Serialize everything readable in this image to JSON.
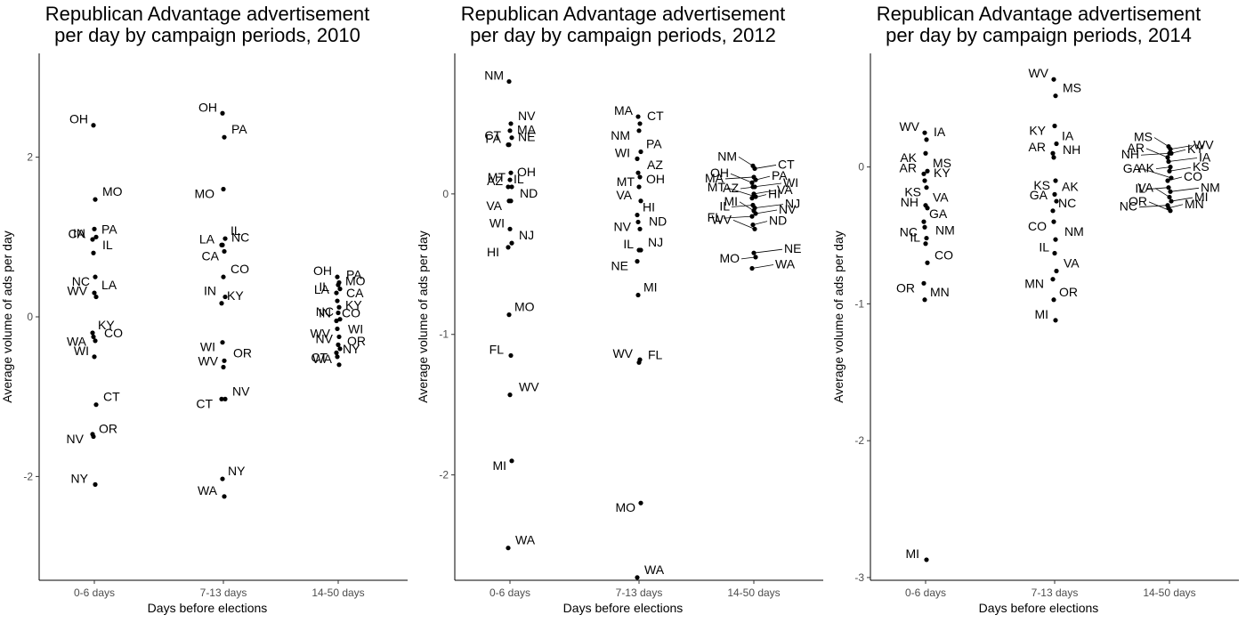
{
  "chart_data": [
    {
      "type": "scatter",
      "title": "Republican Advantage advertisement\nper day by campaign periods, 2010",
      "xlabel": "Days before elections",
      "ylabel": "Average volume of ads per day",
      "categories": [
        "0-6 days",
        "7-13 days",
        "14-50 days"
      ],
      "ylim": [
        -3.3,
        3.3
      ],
      "yticks": [
        -2,
        0,
        2
      ],
      "grid": false,
      "legend": "none",
      "points": [
        {
          "x": "0-6 days",
          "y": 2.4,
          "label": "OH"
        },
        {
          "x": "0-6 days",
          "y": 1.47,
          "label": "MO"
        },
        {
          "x": "0-6 days",
          "y": 1.1,
          "label": "CA"
        },
        {
          "x": "0-6 days",
          "y": 1.0,
          "label": "PA"
        },
        {
          "x": "0-6 days",
          "y": 0.97,
          "label": "IN"
        },
        {
          "x": "0-6 days",
          "y": 0.8,
          "label": "IL"
        },
        {
          "x": "0-6 days",
          "y": 0.5,
          "label": "NC"
        },
        {
          "x": "0-6 days",
          "y": 0.3,
          "label": "LA"
        },
        {
          "x": "0-6 days",
          "y": 0.25,
          "label": "WV"
        },
        {
          "x": "0-6 days",
          "y": -0.2,
          "label": "KY"
        },
        {
          "x": "0-6 days",
          "y": -0.25,
          "label": "WA"
        },
        {
          "x": "0-6 days",
          "y": -0.3,
          "label": "CO"
        },
        {
          "x": "0-6 days",
          "y": -0.5,
          "label": "WI"
        },
        {
          "x": "0-6 days",
          "y": -1.1,
          "label": "CT"
        },
        {
          "x": "0-6 days",
          "y": -1.47,
          "label": "NV"
        },
        {
          "x": "0-6 days",
          "y": -1.5,
          "label": "OR"
        },
        {
          "x": "0-6 days",
          "y": -2.1,
          "label": "NY"
        },
        {
          "x": "7-13 days",
          "y": 2.55,
          "label": "OH"
        },
        {
          "x": "7-13 days",
          "y": 2.25,
          "label": "PA"
        },
        {
          "x": "7-13 days",
          "y": 1.6,
          "label": "MO"
        },
        {
          "x": "7-13 days",
          "y": 0.98,
          "label": "IL"
        },
        {
          "x": "7-13 days",
          "y": 0.9,
          "label": "LA"
        },
        {
          "x": "7-13 days",
          "y": 0.9,
          "label": "NC"
        },
        {
          "x": "7-13 days",
          "y": 0.82,
          "label": "CA"
        },
        {
          "x": "7-13 days",
          "y": 0.5,
          "label": "CO"
        },
        {
          "x": "7-13 days",
          "y": 0.25,
          "label": "IN"
        },
        {
          "x": "7-13 days",
          "y": 0.17,
          "label": "KY"
        },
        {
          "x": "7-13 days",
          "y": -0.32,
          "label": "WI"
        },
        {
          "x": "7-13 days",
          "y": -0.55,
          "label": "OR"
        },
        {
          "x": "7-13 days",
          "y": -0.63,
          "label": "WV"
        },
        {
          "x": "7-13 days",
          "y": -1.03,
          "label": "NV"
        },
        {
          "x": "7-13 days",
          "y": -1.03,
          "label": "CT"
        },
        {
          "x": "7-13 days",
          "y": -2.03,
          "label": "NY"
        },
        {
          "x": "7-13 days",
          "y": -2.25,
          "label": "WA"
        },
        {
          "x": "14-50 days",
          "y": 0.5,
          "label": "OH"
        },
        {
          "x": "14-50 days",
          "y": 0.43,
          "label": "PA"
        },
        {
          "x": "14-50 days",
          "y": 0.4,
          "label": "LA"
        },
        {
          "x": "14-50 days",
          "y": 0.35,
          "label": "MO"
        },
        {
          "x": "14-50 days",
          "y": 0.3,
          "label": "IL"
        },
        {
          "x": "14-50 days",
          "y": 0.2,
          "label": "CA"
        },
        {
          "x": "14-50 days",
          "y": 0.12,
          "label": "NC"
        },
        {
          "x": "14-50 days",
          "y": 0.05,
          "label": "KY"
        },
        {
          "x": "14-50 days",
          "y": -0.03,
          "label": "IN"
        },
        {
          "x": "14-50 days",
          "y": -0.05,
          "label": "CO"
        },
        {
          "x": "14-50 days",
          "y": -0.15,
          "label": "WV"
        },
        {
          "x": "14-50 days",
          "y": -0.25,
          "label": "WI"
        },
        {
          "x": "14-50 days",
          "y": -0.35,
          "label": "NV"
        },
        {
          "x": "14-50 days",
          "y": -0.4,
          "label": "OR"
        },
        {
          "x": "14-50 days",
          "y": -0.45,
          "label": "CT"
        },
        {
          "x": "14-50 days",
          "y": -0.5,
          "label": "NY"
        },
        {
          "x": "14-50 days",
          "y": -0.6,
          "label": "WA"
        }
      ]
    },
    {
      "type": "scatter",
      "title": "Republican Advantage advertisement\nper day by campaign periods, 2012",
      "xlabel": "Days before elections",
      "ylabel": "Average volume of ads per day",
      "categories": [
        "0-6 days",
        "7-13 days",
        "14-50 days"
      ],
      "ylim": [
        -2.75,
        1.0
      ],
      "yticks": [
        -2,
        -1,
        0
      ],
      "grid": false,
      "legend": "none",
      "points": [
        {
          "x": "0-6 days",
          "y": 0.8,
          "label": "NM"
        },
        {
          "x": "0-6 days",
          "y": 0.5,
          "label": "NV"
        },
        {
          "x": "0-6 days",
          "y": 0.45,
          "label": "CT"
        },
        {
          "x": "0-6 days",
          "y": 0.4,
          "label": "MA"
        },
        {
          "x": "0-6 days",
          "y": 0.35,
          "label": "PA"
        },
        {
          "x": "0-6 days",
          "y": 0.35,
          "label": "NE"
        },
        {
          "x": "0-6 days",
          "y": 0.15,
          "label": "MT"
        },
        {
          "x": "0-6 days",
          "y": 0.1,
          "label": "OH"
        },
        {
          "x": "0-6 days",
          "y": 0.05,
          "label": "AZ"
        },
        {
          "x": "0-6 days",
          "y": 0.05,
          "label": "IL"
        },
        {
          "x": "0-6 days",
          "y": -0.05,
          "label": "VA"
        },
        {
          "x": "0-6 days",
          "y": -0.05,
          "label": "ND"
        },
        {
          "x": "0-6 days",
          "y": -0.25,
          "label": "WI"
        },
        {
          "x": "0-6 days",
          "y": -0.35,
          "label": "NJ"
        },
        {
          "x": "0-6 days",
          "y": -0.38,
          "label": "HI"
        },
        {
          "x": "0-6 days",
          "y": -0.86,
          "label": "MO"
        },
        {
          "x": "0-6 days",
          "y": -1.15,
          "label": "FL"
        },
        {
          "x": "0-6 days",
          "y": -1.43,
          "label": "WV"
        },
        {
          "x": "0-6 days",
          "y": -1.9,
          "label": "MI"
        },
        {
          "x": "0-6 days",
          "y": -2.52,
          "label": "WA"
        },
        {
          "x": "7-13 days",
          "y": 0.55,
          "label": "MA"
        },
        {
          "x": "7-13 days",
          "y": 0.5,
          "label": "CT"
        },
        {
          "x": "7-13 days",
          "y": 0.45,
          "label": "NM"
        },
        {
          "x": "7-13 days",
          "y": 0.3,
          "label": "PA"
        },
        {
          "x": "7-13 days",
          "y": 0.25,
          "label": "WI"
        },
        {
          "x": "7-13 days",
          "y": 0.15,
          "label": "AZ"
        },
        {
          "x": "7-13 days",
          "y": 0.12,
          "label": "MT"
        },
        {
          "x": "7-13 days",
          "y": 0.05,
          "label": "OH"
        },
        {
          "x": "7-13 days",
          "y": -0.05,
          "label": "VA"
        },
        {
          "x": "7-13 days",
          "y": -0.15,
          "label": "HI"
        },
        {
          "x": "7-13 days",
          "y": -0.2,
          "label": "NV"
        },
        {
          "x": "7-13 days",
          "y": -0.25,
          "label": "ND"
        },
        {
          "x": "7-13 days",
          "y": -0.4,
          "label": "IL"
        },
        {
          "x": "7-13 days",
          "y": -0.4,
          "label": "NJ"
        },
        {
          "x": "7-13 days",
          "y": -0.48,
          "label": "NE"
        },
        {
          "x": "7-13 days",
          "y": -0.72,
          "label": "MI"
        },
        {
          "x": "7-13 days",
          "y": -1.18,
          "label": "WV"
        },
        {
          "x": "7-13 days",
          "y": -1.2,
          "label": "FL"
        },
        {
          "x": "7-13 days",
          "y": -2.2,
          "label": "MO"
        },
        {
          "x": "7-13 days",
          "y": -2.73,
          "label": "WA"
        },
        {
          "x": "14-50 days",
          "y": 0.2,
          "label": "NM"
        },
        {
          "x": "14-50 days",
          "y": 0.18,
          "label": "CT"
        },
        {
          "x": "14-50 days",
          "y": 0.12,
          "label": "MA"
        },
        {
          "x": "14-50 days",
          "y": 0.1,
          "label": "PA"
        },
        {
          "x": "14-50 days",
          "y": 0.08,
          "label": "OH"
        },
        {
          "x": "14-50 days",
          "y": 0.05,
          "label": "WI"
        },
        {
          "x": "14-50 days",
          "y": 0.05,
          "label": "AZ"
        },
        {
          "x": "14-50 days",
          "y": 0.0,
          "label": "VA"
        },
        {
          "x": "14-50 days",
          "y": -0.02,
          "label": "MT"
        },
        {
          "x": "14-50 days",
          "y": -0.03,
          "label": "HI"
        },
        {
          "x": "14-50 days",
          "y": -0.08,
          "label": "IL"
        },
        {
          "x": "14-50 days",
          "y": -0.1,
          "label": "NJ"
        },
        {
          "x": "14-50 days",
          "y": -0.12,
          "label": "MI"
        },
        {
          "x": "14-50 days",
          "y": -0.14,
          "label": "NV"
        },
        {
          "x": "14-50 days",
          "y": -0.16,
          "label": "FL"
        },
        {
          "x": "14-50 days",
          "y": -0.22,
          "label": "ND"
        },
        {
          "x": "14-50 days",
          "y": -0.25,
          "label": "WV"
        },
        {
          "x": "14-50 days",
          "y": -0.42,
          "label": "NE"
        },
        {
          "x": "14-50 days",
          "y": -0.45,
          "label": "MO"
        },
        {
          "x": "14-50 days",
          "y": -0.53,
          "label": "WA"
        }
      ]
    },
    {
      "type": "scatter",
      "title": "Republican Advantage advertisement\nper day by campaign periods, 2014",
      "xlabel": "Days before elections",
      "ylabel": "Average volume of ads per day",
      "categories": [
        "0-6 days",
        "7-13 days",
        "14-50 days"
      ],
      "ylim": [
        -3.02,
        0.83
      ],
      "yticks": [
        -3,
        -2,
        -1,
        0
      ],
      "grid": false,
      "legend": "none",
      "points": [
        {
          "x": "0-6 days",
          "y": 0.25,
          "label": "WV"
        },
        {
          "x": "0-6 days",
          "y": 0.2,
          "label": "IA"
        },
        {
          "x": "0-6 days",
          "y": 0.1,
          "label": "AK"
        },
        {
          "x": "0-6 days",
          "y": -0.03,
          "label": "MS"
        },
        {
          "x": "0-6 days",
          "y": -0.05,
          "label": "AR"
        },
        {
          "x": "0-6 days",
          "y": -0.1,
          "label": "KY"
        },
        {
          "x": "0-6 days",
          "y": -0.15,
          "label": "KS"
        },
        {
          "x": "0-6 days",
          "y": -0.28,
          "label": "VA"
        },
        {
          "x": "0-6 days",
          "y": -0.3,
          "label": "NH"
        },
        {
          "x": "0-6 days",
          "y": -0.4,
          "label": "GA"
        },
        {
          "x": "0-6 days",
          "y": -0.44,
          "label": "NC"
        },
        {
          "x": "0-6 days",
          "y": -0.52,
          "label": "NM"
        },
        {
          "x": "0-6 days",
          "y": -0.56,
          "label": "IL"
        },
        {
          "x": "0-6 days",
          "y": -0.7,
          "label": "CO"
        },
        {
          "x": "0-6 days",
          "y": -0.85,
          "label": "OR"
        },
        {
          "x": "0-6 days",
          "y": -0.97,
          "label": "MN"
        },
        {
          "x": "0-6 days",
          "y": -2.87,
          "label": "MI"
        },
        {
          "x": "7-13 days",
          "y": 0.64,
          "label": "WV"
        },
        {
          "x": "7-13 days",
          "y": 0.52,
          "label": "MS"
        },
        {
          "x": "7-13 days",
          "y": 0.3,
          "label": "KY"
        },
        {
          "x": "7-13 days",
          "y": 0.17,
          "label": "IA"
        },
        {
          "x": "7-13 days",
          "y": 0.1,
          "label": "AR"
        },
        {
          "x": "7-13 days",
          "y": 0.07,
          "label": "NH"
        },
        {
          "x": "7-13 days",
          "y": -0.1,
          "label": "KS"
        },
        {
          "x": "7-13 days",
          "y": -0.2,
          "label": "AK"
        },
        {
          "x": "7-13 days",
          "y": -0.25,
          "label": "GA"
        },
        {
          "x": "7-13 days",
          "y": -0.32,
          "label": "NC"
        },
        {
          "x": "7-13 days",
          "y": -0.4,
          "label": "CO"
        },
        {
          "x": "7-13 days",
          "y": -0.53,
          "label": "NM"
        },
        {
          "x": "7-13 days",
          "y": -0.63,
          "label": "IL"
        },
        {
          "x": "7-13 days",
          "y": -0.76,
          "label": "VA"
        },
        {
          "x": "7-13 days",
          "y": -0.82,
          "label": "MN"
        },
        {
          "x": "7-13 days",
          "y": -0.97,
          "label": "OR"
        },
        {
          "x": "7-13 days",
          "y": -1.12,
          "label": "MI"
        },
        {
          "x": "14-50 days",
          "y": 0.15,
          "label": "MS"
        },
        {
          "x": "14-50 days",
          "y": 0.13,
          "label": "WV"
        },
        {
          "x": "14-50 days",
          "y": 0.1,
          "label": "NH"
        },
        {
          "x": "14-50 days",
          "y": 0.1,
          "label": "KY"
        },
        {
          "x": "14-50 days",
          "y": 0.07,
          "label": "AR"
        },
        {
          "x": "14-50 days",
          "y": 0.04,
          "label": "IA"
        },
        {
          "x": "14-50 days",
          "y": 0.0,
          "label": "AK"
        },
        {
          "x": "14-50 days",
          "y": -0.03,
          "label": "KS"
        },
        {
          "x": "14-50 days",
          "y": -0.08,
          "label": "GA"
        },
        {
          "x": "14-50 days",
          "y": -0.1,
          "label": "CO"
        },
        {
          "x": "14-50 days",
          "y": -0.15,
          "label": "IL"
        },
        {
          "x": "14-50 days",
          "y": -0.18,
          "label": "NM"
        },
        {
          "x": "14-50 days",
          "y": -0.22,
          "label": "VA"
        },
        {
          "x": "14-50 days",
          "y": -0.25,
          "label": "MI"
        },
        {
          "x": "14-50 days",
          "y": -0.28,
          "label": "NC"
        },
        {
          "x": "14-50 days",
          "y": -0.3,
          "label": "MN"
        },
        {
          "x": "14-50 days",
          "y": -0.32,
          "label": "OR"
        }
      ]
    }
  ]
}
